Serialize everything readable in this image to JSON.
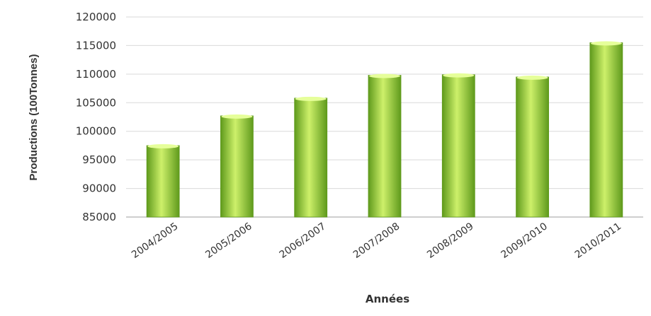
{
  "chart_data": {
    "type": "bar",
    "title": "",
    "xlabel": "Années",
    "ylabel": "Productions (100Tonnes)",
    "categories": [
      "2004/2005",
      "2005/2006",
      "2006/2007",
      "2007/2008",
      "2008/2009",
      "2009/2010",
      "2010/2011"
    ],
    "values": [
      97500,
      102700,
      105800,
      109800,
      109900,
      109500,
      115500
    ],
    "ylim": [
      85000,
      120000
    ],
    "yticks": [
      85000,
      90000,
      95000,
      100000,
      105000,
      110000,
      115000,
      120000
    ],
    "grid": true,
    "legend": "none",
    "colors": {
      "bar_light": "#cdf06a",
      "bar_mid": "#9fd83a",
      "bar_dark": "#5f9a1c",
      "bar_top": "#e6ff9a",
      "grid": "#d9d9d9",
      "axis": "#bdbdbd",
      "text": "#333333"
    }
  }
}
